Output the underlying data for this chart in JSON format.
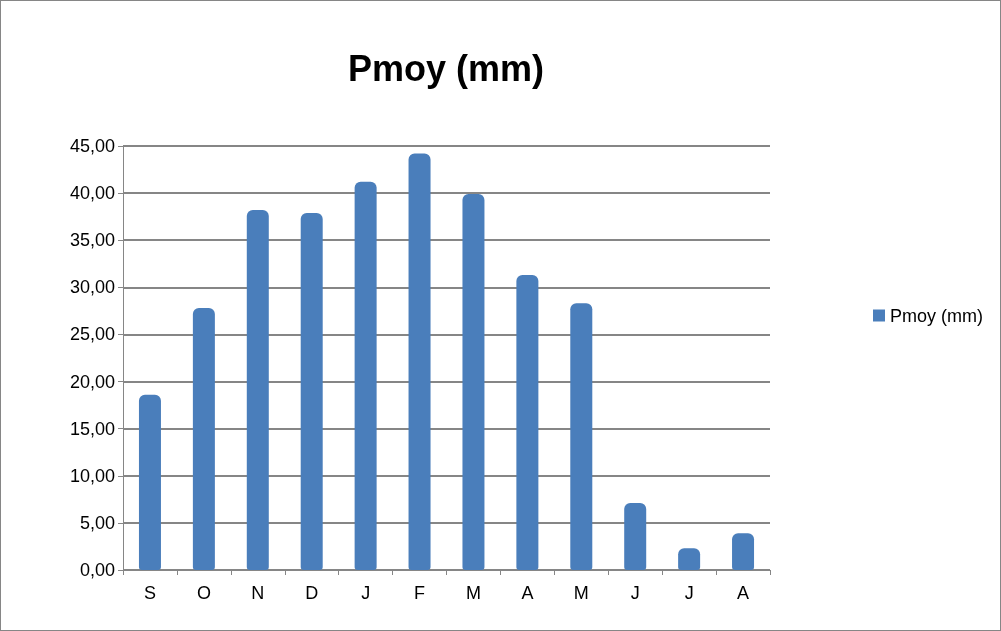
{
  "chart_data": {
    "type": "bar",
    "title": "Pmoy (mm)",
    "categories": [
      "S",
      "O",
      "N",
      "D",
      "J",
      "F",
      "M",
      "A",
      "M",
      "J",
      "J",
      "A"
    ],
    "series": [
      {
        "name": "Pmoy (mm)",
        "color": "#4a7ebb",
        "values": [
          18.6,
          27.8,
          38.2,
          37.9,
          41.2,
          44.2,
          39.9,
          31.3,
          28.3,
          7.1,
          2.3,
          3.9
        ]
      }
    ],
    "ylim": [
      0,
      45
    ],
    "yticks": [
      {
        "value": 0,
        "label": "0,00"
      },
      {
        "value": 5,
        "label": "5,00"
      },
      {
        "value": 10,
        "label": "10,00"
      },
      {
        "value": 15,
        "label": "15,00"
      },
      {
        "value": 20,
        "label": "20,00"
      },
      {
        "value": 25,
        "label": "25,00"
      },
      {
        "value": 30,
        "label": "30,00"
      },
      {
        "value": 35,
        "label": "35,00"
      },
      {
        "value": 40,
        "label": "40,00"
      },
      {
        "value": 45,
        "label": "45,00"
      }
    ],
    "grid": "y",
    "legend": "right"
  }
}
